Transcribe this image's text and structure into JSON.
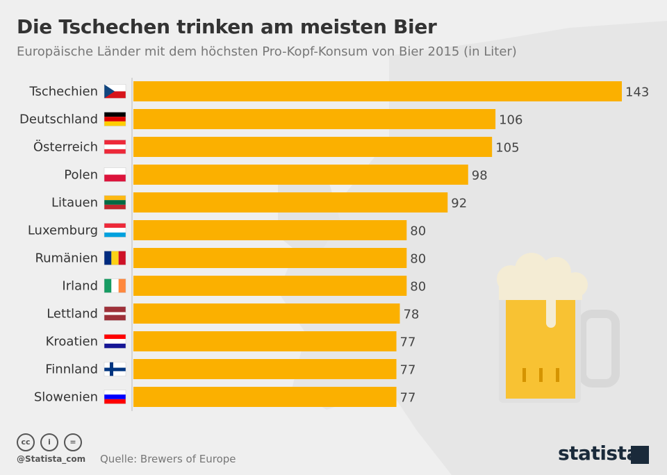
{
  "title": "Die Tschechen trinken am meisten Bier",
  "subtitle": "Europäische Länder mit dem höchsten Pro-Kopf-Konsum von Bier 2015 (in Liter)",
  "footer": {
    "handle": "@Statista_com",
    "source": "Quelle: Brewers of Europe",
    "logo": "statista",
    "license_icons": [
      "cc-icon",
      "attribution-icon",
      "no-derivatives-icon"
    ]
  },
  "colors": {
    "bar": "#fbb000",
    "text": "#333333",
    "background": "#efefef"
  },
  "chart_data": {
    "type": "bar",
    "orientation": "horizontal",
    "categories": [
      "Tschechien",
      "Deutschland",
      "Österreich",
      "Polen",
      "Litauen",
      "Luxemburg",
      "Rumänien",
      "Irland",
      "Lettland",
      "Kroatien",
      "Finnland",
      "Slowenien"
    ],
    "flags": [
      "flag-czech",
      "flag-germany",
      "flag-austria",
      "flag-poland",
      "flag-lithuania",
      "flag-luxembourg",
      "flag-romania",
      "flag-ireland",
      "flag-latvia",
      "flag-croatia",
      "flag-finland",
      "flag-slovenia"
    ],
    "values": [
      143,
      106,
      105,
      98,
      92,
      80,
      80,
      80,
      78,
      77,
      77,
      77
    ],
    "xlim": [
      0,
      143
    ],
    "grid": false
  }
}
